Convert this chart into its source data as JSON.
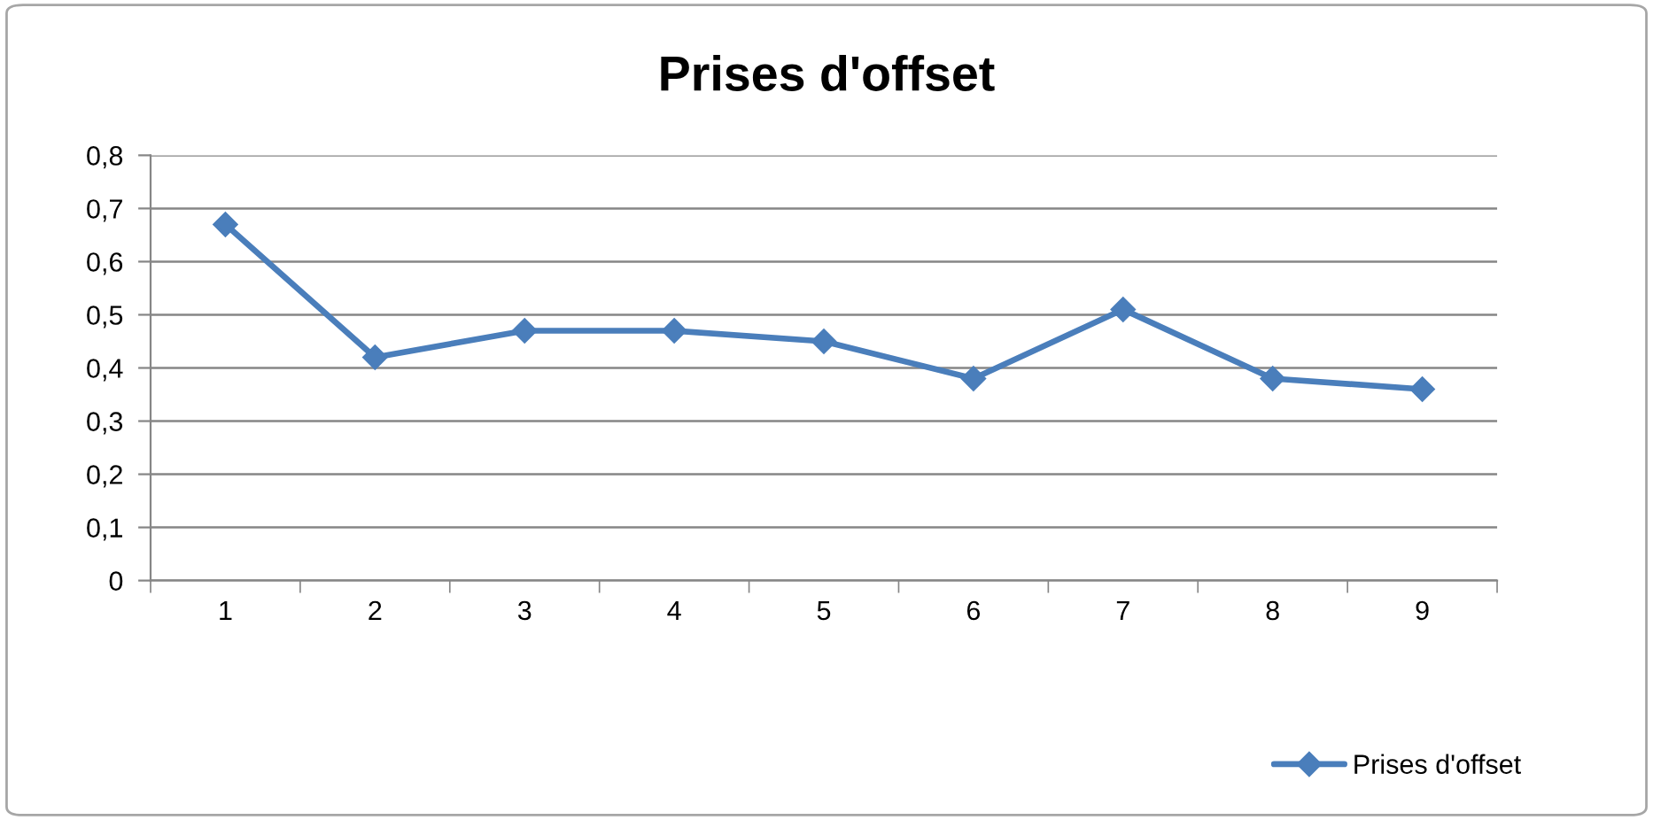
{
  "chart_data": {
    "type": "line",
    "title": "Prises d'offset",
    "categories": [
      "1",
      "2",
      "3",
      "4",
      "5",
      "6",
      "7",
      "8",
      "9"
    ],
    "series": [
      {
        "name": "Prises d'offset",
        "color": "#4a7ebb",
        "values": [
          0.67,
          0.42,
          0.47,
          0.47,
          0.45,
          0.38,
          0.51,
          0.38,
          0.36
        ]
      }
    ],
    "ylim": [
      0,
      0.8
    ],
    "yticks": [
      0,
      {
        "value": 0.1,
        "label": "0,1"
      },
      {
        "value": 0.2,
        "label": "0,2"
      },
      {
        "value": 0.3,
        "label": "0,3"
      },
      {
        "value": 0.4,
        "label": "0,4"
      },
      {
        "value": 0.5,
        "label": "0,5"
      },
      {
        "value": 0.6,
        "label": "0,6"
      },
      {
        "value": 0.7,
        "label": "0,7"
      },
      {
        "value": 0.8,
        "label": "0,8"
      }
    ],
    "grid": "y",
    "legend": "bottom right",
    "marker": "diamond",
    "line_style": "solid"
  }
}
